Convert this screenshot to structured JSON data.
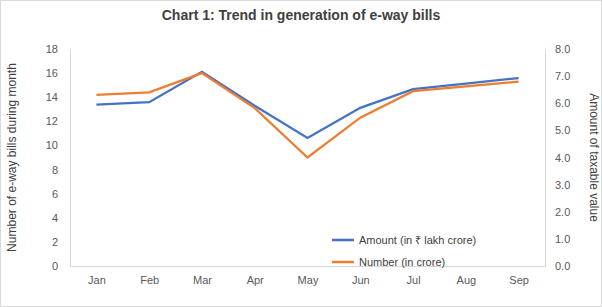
{
  "chart_data": {
    "type": "line",
    "title": "Chart 1: Trend in generation of e-way bills",
    "y_label": "Number of e-way bills during month",
    "y2_label": "Amount of taxable value",
    "categories": [
      "Jan",
      "Feb",
      "Mar",
      "Apr",
      "May",
      "Jun",
      "Jul",
      "Aug",
      "Sep"
    ],
    "series": [
      {
        "name": "Amount (in ₹ lakh crore)",
        "color": "#4472c4",
        "axis": "y2",
        "values": [
          5.95,
          6.04,
          7.16,
          5.91,
          4.72,
          5.83,
          6.52,
          6.72,
          6.93
        ]
      },
      {
        "name": "Number (in crore)",
        "color": "#ed7d31",
        "values": [
          14.2,
          14.4,
          16.0,
          13.1,
          9.0,
          12.3,
          14.5,
          14.9,
          15.3
        ]
      }
    ],
    "ylim": [
      0,
      18
    ],
    "yticks": [
      0,
      2,
      4,
      6,
      8,
      10,
      12,
      14,
      16,
      18
    ],
    "y2lim": [
      0,
      8
    ],
    "y2ticks": [
      {
        "value": 0,
        "label": "0.0"
      },
      {
        "value": 1,
        "label": "1.0"
      },
      {
        "value": 2,
        "label": "2.0"
      },
      {
        "value": 3,
        "label": "3.0"
      },
      {
        "value": 4,
        "label": "4.0"
      },
      {
        "value": 5,
        "label": "5.0"
      },
      {
        "value": 6,
        "label": "6.0"
      },
      {
        "value": 7,
        "label": "7.0"
      },
      {
        "value": 8,
        "label": "8.0"
      }
    ],
    "legend": "lower right",
    "grid": false
  }
}
